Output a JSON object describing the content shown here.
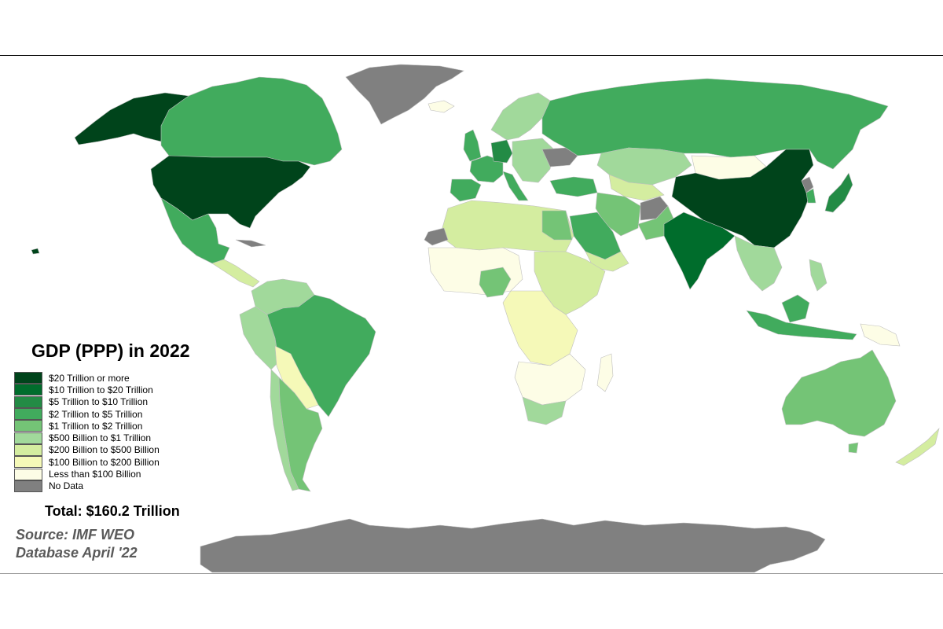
{
  "map": {
    "title": "GDP (PPP) in 2022",
    "total": "Total: $160.2 Trillion",
    "source": "Source: IMF WEO Database April '22",
    "legend": [
      {
        "label": "$20 Trillion or more",
        "color": "#00441b"
      },
      {
        "label": "$10 Trillion to $20 Trillion",
        "color": "#006d2c"
      },
      {
        "label": "$5 Trillion to $10 Trillion",
        "color": "#238b45"
      },
      {
        "label": "$2 Trillion to $5 Trillion",
        "color": "#41ab5d"
      },
      {
        "label": "$1 Trillion to $2 Trillion",
        "color": "#74c476"
      },
      {
        "label": "$500 Billion to $1 Trillion",
        "color": "#a1d99b"
      },
      {
        "label": "$200 Billion to $500 Billion",
        "color": "#d4eda0"
      },
      {
        "label": "$100 Billion to $200 Billion",
        "color": "#f5f9b8"
      },
      {
        "label": "Less than $100 Billion",
        "color": "#fdfde6"
      },
      {
        "label": "No Data",
        "color": "#808080"
      }
    ],
    "border_color": "#bfbfbf"
  }
}
